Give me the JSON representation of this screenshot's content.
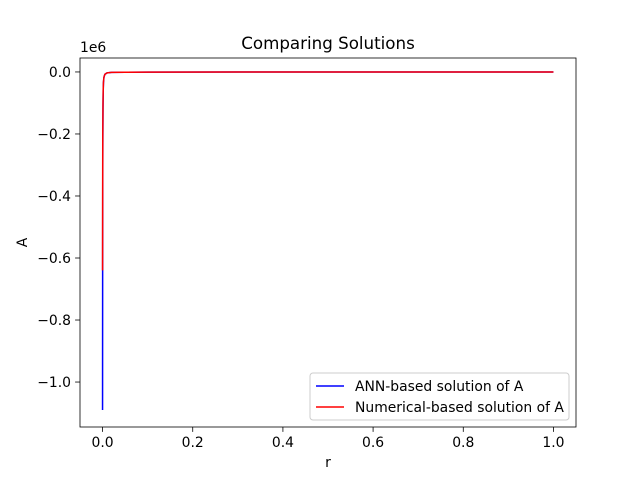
{
  "chart_data": {
    "type": "line",
    "title": "Comparing Solutions",
    "xlabel": "r",
    "ylabel": "A",
    "y_offset_label": "1e6",
    "xlim": [
      -0.05,
      1.05
    ],
    "ylim": [
      -1.145,
      0.045
    ],
    "y_scale_factor": 1000000,
    "xticks": [
      0.0,
      0.2,
      0.4,
      0.6,
      0.8,
      1.0
    ],
    "xtick_labels": [
      "0.0",
      "0.2",
      "0.4",
      "0.6",
      "0.8",
      "1.0"
    ],
    "yticks": [
      0.0,
      -0.2,
      -0.4,
      -0.6,
      -0.8,
      -1.0
    ],
    "ytick_labels": [
      "0.0",
      "−0.2",
      "−0.4",
      "−0.6",
      "−0.8",
      "−1.0"
    ],
    "grid": false,
    "legend_position": "lower-right",
    "series": [
      {
        "name": "ANN-based solution of A",
        "color": "#0000ff",
        "x": [
          0.0,
          0.0002,
          0.0005,
          0.001,
          0.0015,
          0.002,
          0.003,
          0.005,
          0.01,
          0.02,
          0.05,
          0.1,
          0.3,
          0.5,
          0.7,
          1.0
        ],
        "y": [
          -1.09,
          -0.64,
          -0.3,
          -0.12,
          -0.06,
          -0.035,
          -0.018,
          -0.008,
          -0.003,
          -0.0015,
          -0.0008,
          -0.0005,
          -0.0002,
          -0.0001,
          -0.0001,
          0.0
        ]
      },
      {
        "name": "Numerical-based solution of A",
        "color": "#ff0000",
        "x": [
          0.0,
          0.0002,
          0.0005,
          0.001,
          0.0015,
          0.002,
          0.003,
          0.005,
          0.01,
          0.02,
          0.05,
          0.1,
          0.3,
          0.5,
          0.7,
          1.0
        ],
        "y": [
          -0.64,
          -0.4,
          -0.2,
          -0.1,
          -0.055,
          -0.033,
          -0.017,
          -0.008,
          -0.003,
          -0.0015,
          -0.0008,
          -0.0005,
          -0.0002,
          -0.0001,
          -0.0001,
          0.0
        ]
      }
    ]
  }
}
